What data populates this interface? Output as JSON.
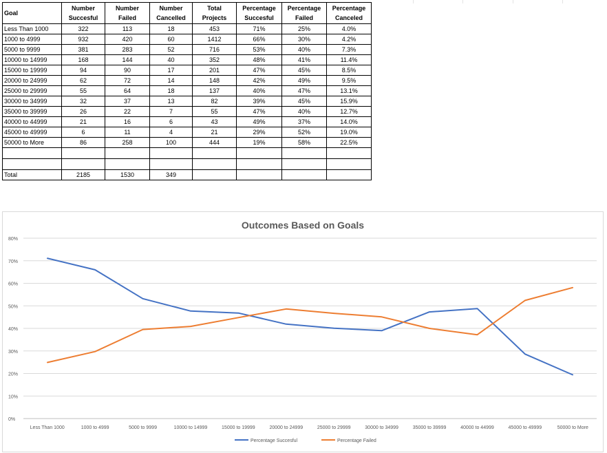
{
  "table": {
    "headers": {
      "goal": "Goal",
      "num_success": [
        "Number",
        "Succesful"
      ],
      "num_failed": [
        "Number",
        "Failed"
      ],
      "num_cancelled": [
        "Number",
        "Cancelled"
      ],
      "total": [
        "Total",
        "Projects"
      ],
      "pct_success": [
        "Percentage",
        "Succesful"
      ],
      "pct_failed": [
        "Percentage",
        "Failed"
      ],
      "pct_cancel": [
        "Percentage",
        "Canceled"
      ]
    },
    "rows": [
      {
        "goal": "Less Than 1000",
        "s": "322",
        "f": "113",
        "c": "18",
        "t": "453",
        "ps": "71%",
        "pf": "25%",
        "pc": "4.0%"
      },
      {
        "goal": "1000 to 4999",
        "s": "932",
        "f": "420",
        "c": "60",
        "t": "1412",
        "ps": "66%",
        "pf": "30%",
        "pc": "4.2%"
      },
      {
        "goal": "5000 to 9999",
        "s": "381",
        "f": "283",
        "c": "52",
        "t": "716",
        "ps": "53%",
        "pf": "40%",
        "pc": "7.3%"
      },
      {
        "goal": "10000 to 14999",
        "s": "168",
        "f": "144",
        "c": "40",
        "t": "352",
        "ps": "48%",
        "pf": "41%",
        "pc": "11.4%"
      },
      {
        "goal": "15000 to 19999",
        "s": "94",
        "f": "90",
        "c": "17",
        "t": "201",
        "ps": "47%",
        "pf": "45%",
        "pc": "8.5%"
      },
      {
        "goal": "20000 to 24999",
        "s": "62",
        "f": "72",
        "c": "14",
        "t": "148",
        "ps": "42%",
        "pf": "49%",
        "pc": "9.5%"
      },
      {
        "goal": "25000 to 29999",
        "s": "55",
        "f": "64",
        "c": "18",
        "t": "137",
        "ps": "40%",
        "pf": "47%",
        "pc": "13.1%"
      },
      {
        "goal": "30000 to 34999",
        "s": "32",
        "f": "37",
        "c": "13",
        "t": "82",
        "ps": "39%",
        "pf": "45%",
        "pc": "15.9%"
      },
      {
        "goal": "35000 to 39999",
        "s": "26",
        "f": "22",
        "c": "7",
        "t": "55",
        "ps": "47%",
        "pf": "40%",
        "pc": "12.7%"
      },
      {
        "goal": "40000 to 44999",
        "s": "21",
        "f": "16",
        "c": "6",
        "t": "43",
        "ps": "49%",
        "pf": "37%",
        "pc": "14.0%"
      },
      {
        "goal": "45000 to 49999",
        "s": "6",
        "f": "11",
        "c": "4",
        "t": "21",
        "ps": "29%",
        "pf": "52%",
        "pc": "19.0%"
      },
      {
        "goal": "50000 to More",
        "s": "86",
        "f": "258",
        "c": "100",
        "t": "444",
        "ps": "19%",
        "pf": "58%",
        "pc": "22.5%"
      }
    ],
    "total": {
      "label": "Total",
      "s": "2185",
      "f": "1530",
      "c": "349"
    }
  },
  "chart_data": {
    "type": "line",
    "title": "Outcomes Based on Goals",
    "categories": [
      "Less Than 1000",
      "1000 to 4999",
      "5000 to 9999",
      "10000 to 14999",
      "15000 to 19999",
      "20000 to 24999",
      "25000 to 29999",
      "30000 to 34999",
      "35000 to 39999",
      "40000 to 44999",
      "45000 to 49999",
      "50000 to More"
    ],
    "series": [
      {
        "name": "Percentage Succesful",
        "color": "#4472c4",
        "values": [
          71.1,
          66.0,
          53.2,
          47.7,
          46.8,
          41.9,
          40.1,
          39.0,
          47.3,
          48.8,
          28.6,
          19.4
        ]
      },
      {
        "name": "Percentage Failed",
        "color": "#ed7d31",
        "values": [
          24.9,
          29.7,
          39.5,
          40.9,
          44.8,
          48.6,
          46.7,
          45.1,
          40.0,
          37.2,
          52.4,
          58.1
        ]
      }
    ],
    "ylim": [
      0,
      80
    ],
    "yticks": [
      0,
      10,
      20,
      30,
      40,
      50,
      60,
      70,
      80
    ],
    "ytick_labels": [
      "0%",
      "10%",
      "20%",
      "30%",
      "40%",
      "50%",
      "60%",
      "70%",
      "80%"
    ],
    "grid": true,
    "legend": "bottom"
  }
}
